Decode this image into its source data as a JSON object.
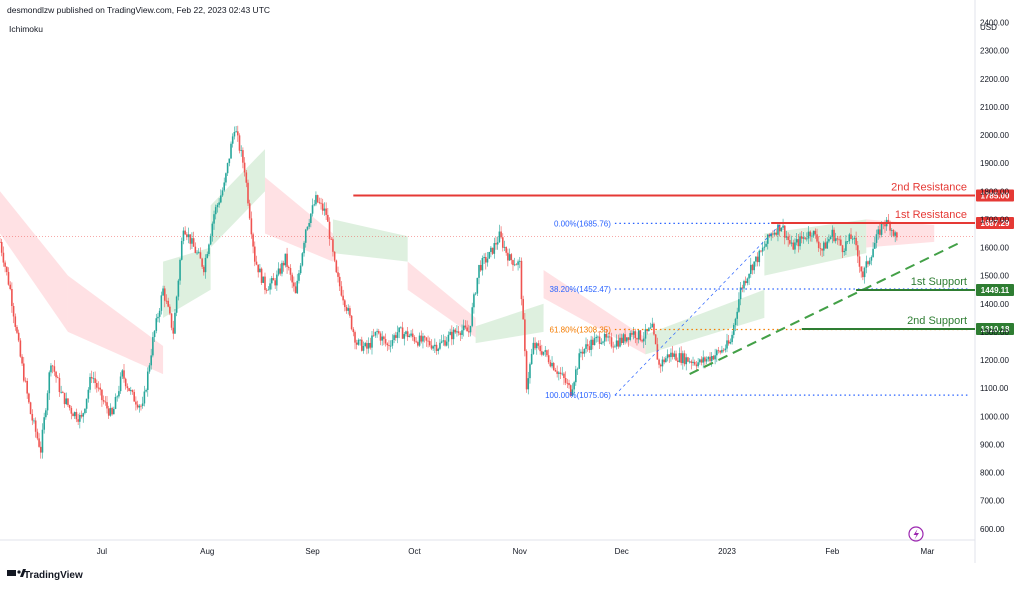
{
  "header": {
    "published": "desmondlzw published on TradingView.com, Feb 22, 2023 02:43 UTC",
    "indicator": "Ichimoku"
  },
  "footer": {
    "brand": "TradingView"
  },
  "colors": {
    "up": "#26a69a",
    "down": "#ef5350",
    "resistance": "#e53935",
    "support": "#2e7d32",
    "trendline": "#43a047",
    "fib_blue": "#2962ff",
    "fib_orange": "#f57c00",
    "cloud_green": "#c8e6c9",
    "cloud_red": "#ffcdd2",
    "text": "#131722"
  },
  "chart_data": {
    "type": "candlestick",
    "currency": "USD",
    "ylim": [
      560,
      2480
    ],
    "y_ticks": [
      "2400.00",
      "2300.00",
      "2200.00",
      "2100.00",
      "2000.00",
      "1900.00",
      "1800.00",
      "1700.00",
      "1600.00",
      "1500.00",
      "1400.00",
      "1300.00",
      "1200.00",
      "1100.00",
      "1000.00",
      "900.00",
      "800.00",
      "700.00",
      "600.00"
    ],
    "x_ticks": [
      {
        "day": 30,
        "label": "Jul"
      },
      {
        "day": 61,
        "label": "Aug"
      },
      {
        "day": 92,
        "label": "Sep"
      },
      {
        "day": 122,
        "label": "Oct"
      },
      {
        "day": 153,
        "label": "Nov"
      },
      {
        "day": 183,
        "label": "Dec"
      },
      {
        "day": 214,
        "label": "2023"
      },
      {
        "day": 245,
        "label": "Feb"
      },
      {
        "day": 273,
        "label": "Mar"
      }
    ],
    "x_range_days": [
      0,
      287
    ],
    "price_path": [
      [
        0,
        1620
      ],
      [
        3,
        1450
      ],
      [
        6,
        1210
      ],
      [
        9,
        1010
      ],
      [
        12,
        880
      ],
      [
        15,
        1200
      ],
      [
        18,
        1080
      ],
      [
        21,
        1020
      ],
      [
        24,
        990
      ],
      [
        27,
        1150
      ],
      [
        30,
        1060
      ],
      [
        33,
        1000
      ],
      [
        36,
        1150
      ],
      [
        39,
        1070
      ],
      [
        42,
        1030
      ],
      [
        45,
        1270
      ],
      [
        48,
        1450
      ],
      [
        51,
        1300
      ],
      [
        54,
        1680
      ],
      [
        57,
        1600
      ],
      [
        60,
        1530
      ],
      [
        63,
        1720
      ],
      [
        66,
        1820
      ],
      [
        69,
        2030
      ],
      [
        72,
        1880
      ],
      [
        75,
        1560
      ],
      [
        78,
        1460
      ],
      [
        81,
        1480
      ],
      [
        84,
        1560
      ],
      [
        87,
        1430
      ],
      [
        90,
        1670
      ],
      [
        93,
        1770
      ],
      [
        96,
        1720
      ],
      [
        99,
        1500
      ],
      [
        102,
        1390
      ],
      [
        105,
        1260
      ],
      [
        108,
        1240
      ],
      [
        111,
        1300
      ],
      [
        114,
        1250
      ],
      [
        117,
        1300
      ],
      [
        120,
        1290
      ],
      [
        123,
        1270
      ],
      [
        126,
        1260
      ],
      [
        129,
        1250
      ],
      [
        132,
        1280
      ],
      [
        135,
        1310
      ],
      [
        138,
        1300
      ],
      [
        141,
        1530
      ],
      [
        144,
        1570
      ],
      [
        147,
        1640
      ],
      [
        150,
        1560
      ],
      [
        153,
        1540
      ],
      [
        155,
        1110
      ],
      [
        157,
        1250
      ],
      [
        160,
        1230
      ],
      [
        163,
        1180
      ],
      [
        166,
        1130
      ],
      [
        168,
        1090
      ],
      [
        171,
        1230
      ],
      [
        174,
        1260
      ],
      [
        177,
        1280
      ],
      [
        180,
        1260
      ],
      [
        183,
        1270
      ],
      [
        186,
        1300
      ],
      [
        189,
        1280
      ],
      [
        192,
        1310
      ],
      [
        194,
        1180
      ],
      [
        197,
        1220
      ],
      [
        200,
        1210
      ],
      [
        203,
        1200
      ],
      [
        206,
        1190
      ],
      [
        209,
        1210
      ],
      [
        212,
        1230
      ],
      [
        215,
        1260
      ],
      [
        218,
        1450
      ],
      [
        221,
        1530
      ],
      [
        224,
        1580
      ],
      [
        227,
        1650
      ],
      [
        230,
        1680
      ],
      [
        233,
        1600
      ],
      [
        236,
        1630
      ],
      [
        239,
        1660
      ],
      [
        242,
        1590
      ],
      [
        245,
        1650
      ],
      [
        248,
        1600
      ],
      [
        251,
        1640
      ],
      [
        254,
        1500
      ],
      [
        257,
        1600
      ],
      [
        260,
        1690
      ],
      [
        262,
        1680
      ],
      [
        264,
        1630
      ]
    ],
    "cloud_segments": [
      {
        "from": 0,
        "to": 20,
        "color": "red",
        "top": [
          1800,
          1500
        ],
        "bottom": [
          1650,
          1300
        ]
      },
      {
        "from": 20,
        "to": 48,
        "color": "red",
        "top": [
          1500,
          1250
        ],
        "bottom": [
          1300,
          1150
        ]
      },
      {
        "from": 48,
        "to": 62,
        "color": "green",
        "top": [
          1550,
          1600
        ],
        "bottom": [
          1350,
          1450
        ]
      },
      {
        "from": 62,
        "to": 78,
        "color": "green",
        "top": [
          1750,
          1950
        ],
        "bottom": [
          1600,
          1800
        ]
      },
      {
        "from": 78,
        "to": 98,
        "color": "red",
        "top": [
          1850,
          1650
        ],
        "bottom": [
          1650,
          1550
        ]
      },
      {
        "from": 98,
        "to": 120,
        "color": "green",
        "top": [
          1700,
          1640
        ],
        "bottom": [
          1580,
          1550
        ]
      },
      {
        "from": 120,
        "to": 140,
        "color": "red",
        "top": [
          1550,
          1350
        ],
        "bottom": [
          1450,
          1280
        ]
      },
      {
        "from": 140,
        "to": 160,
        "color": "green",
        "top": [
          1320,
          1400
        ],
        "bottom": [
          1260,
          1300
        ]
      },
      {
        "from": 160,
        "to": 190,
        "color": "red",
        "top": [
          1520,
          1280
        ],
        "bottom": [
          1420,
          1220
        ]
      },
      {
        "from": 190,
        "to": 225,
        "color": "green",
        "top": [
          1290,
          1450
        ],
        "bottom": [
          1220,
          1350
        ]
      },
      {
        "from": 225,
        "to": 255,
        "color": "green",
        "top": [
          1650,
          1700
        ],
        "bottom": [
          1500,
          1580
        ]
      },
      {
        "from": 255,
        "to": 275,
        "color": "red",
        "top": [
          1700,
          1680
        ],
        "bottom": [
          1600,
          1620
        ]
      }
    ],
    "levels": [
      {
        "label": "2nd Resistance",
        "price": 1785.0,
        "price_label": "1785.00",
        "type": "resistance",
        "start_day": 104
      },
      {
        "label": "1st Resistance",
        "price": 1687.29,
        "price_label": "1687.29",
        "type": "resistance",
        "start_day": 227
      },
      {
        "label": "1st Support",
        "price": 1449.11,
        "price_label": "1449.11",
        "type": "support",
        "start_day": 252
      },
      {
        "label": "2nd Support",
        "price": 1310.18,
        "price_label": "1310.18",
        "type": "support",
        "start_day": 236
      }
    ],
    "fibonacci": [
      {
        "label": "0.00%(1685.76)",
        "price": 1685.76,
        "color": "blue"
      },
      {
        "label": "38.20%(1452.47)",
        "price": 1452.47,
        "color": "blue"
      },
      {
        "label": "61.80%(1308.35)",
        "price": 1308.35,
        "color": "orange"
      },
      {
        "label": "100.00%(1075.06)",
        "price": 1075.06,
        "color": "blue"
      }
    ],
    "fib_anchor": {
      "from_day": 181,
      "from_price": 1075.06,
      "to_day": 230,
      "to_price": 1685.76
    },
    "trendline": {
      "from_day": 203,
      "from_price": 1150,
      "to_day": 283,
      "to_price": 1620
    },
    "last_price_line": 1640
  }
}
